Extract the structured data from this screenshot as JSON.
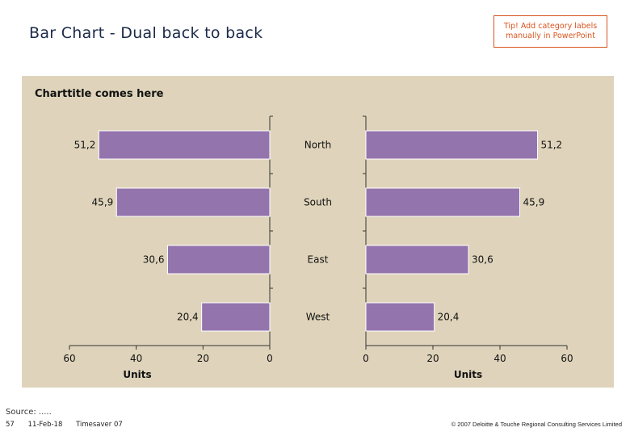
{
  "slide": {
    "title": "Bar Chart - Dual back to back",
    "tip": "Tip! Add category labels manually in PowerPoint"
  },
  "source": "Source: .....",
  "footer": {
    "page_number": "57",
    "date": "11-Feb-18",
    "deck": "Timesaver 07",
    "copyright": "© 2007 Deloitte & Touche Regional Consulting Services Limited"
  },
  "colors": {
    "bar": "#9474ad",
    "panel": "#dfd4bb",
    "tip_border": "#d9541e"
  },
  "chart_data": {
    "type": "bar",
    "title": "Charttitle comes here",
    "orientation": "horizontal",
    "layout": "back-to-back",
    "categories": [
      "North",
      "South",
      "East",
      "West"
    ],
    "left": {
      "values": [
        51.2,
        45.9,
        30.6,
        20.4
      ],
      "value_labels": [
        "51,2",
        "45,9",
        "30,6",
        "20,4"
      ],
      "xlabel": "Units",
      "xlim": [
        60,
        0
      ],
      "ticks": [
        60,
        40,
        20,
        0
      ]
    },
    "right": {
      "values": [
        51.2,
        45.9,
        30.6,
        20.4
      ],
      "value_labels": [
        "51,2",
        "45,9",
        "30,6",
        "20,4"
      ],
      "xlabel": "Units",
      "xlim": [
        0,
        60
      ],
      "ticks": [
        0,
        20,
        40,
        60
      ]
    },
    "grid": false,
    "legend": "none"
  }
}
